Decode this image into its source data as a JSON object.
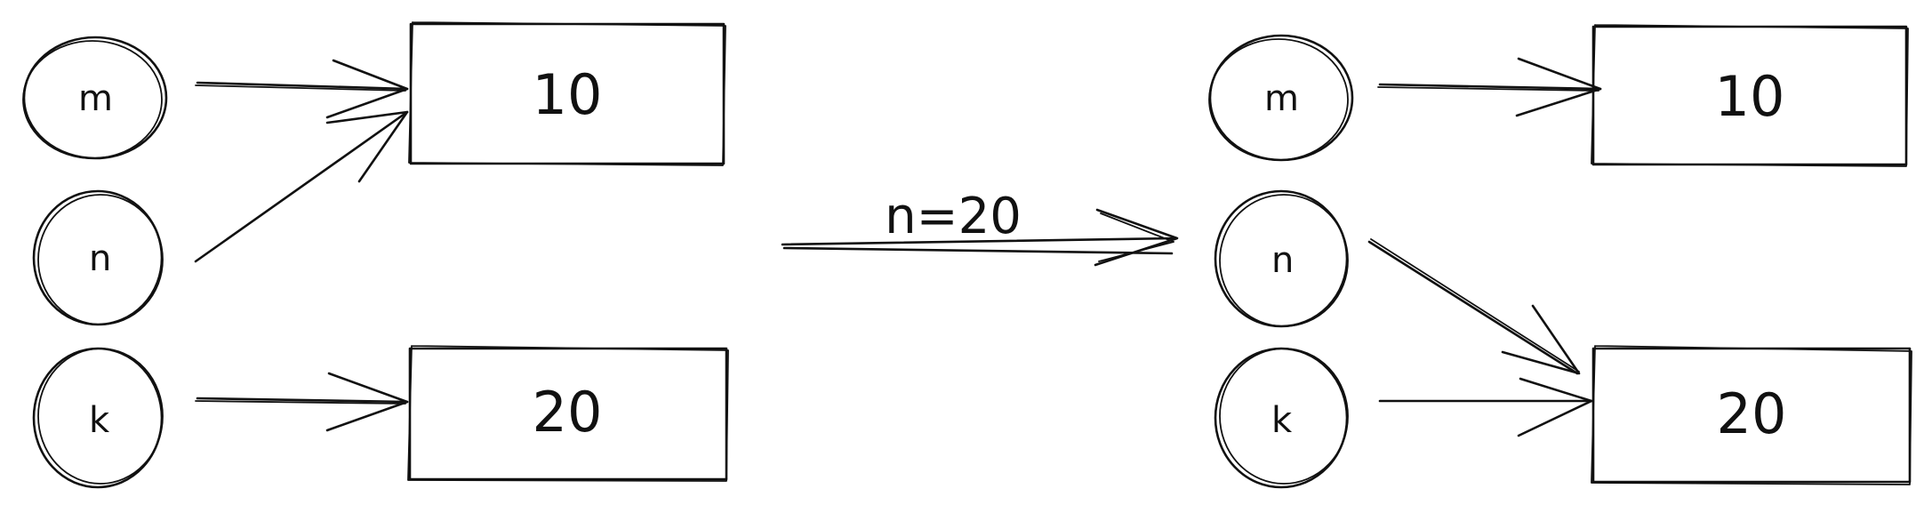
{
  "diagram": {
    "before": {
      "variables": [
        "m",
        "n",
        "k"
      ],
      "values": [
        "10",
        "20"
      ]
    },
    "transition_label": "n=20",
    "after": {
      "variables": [
        "m",
        "n",
        "k"
      ],
      "values": [
        "10",
        "20"
      ]
    }
  }
}
